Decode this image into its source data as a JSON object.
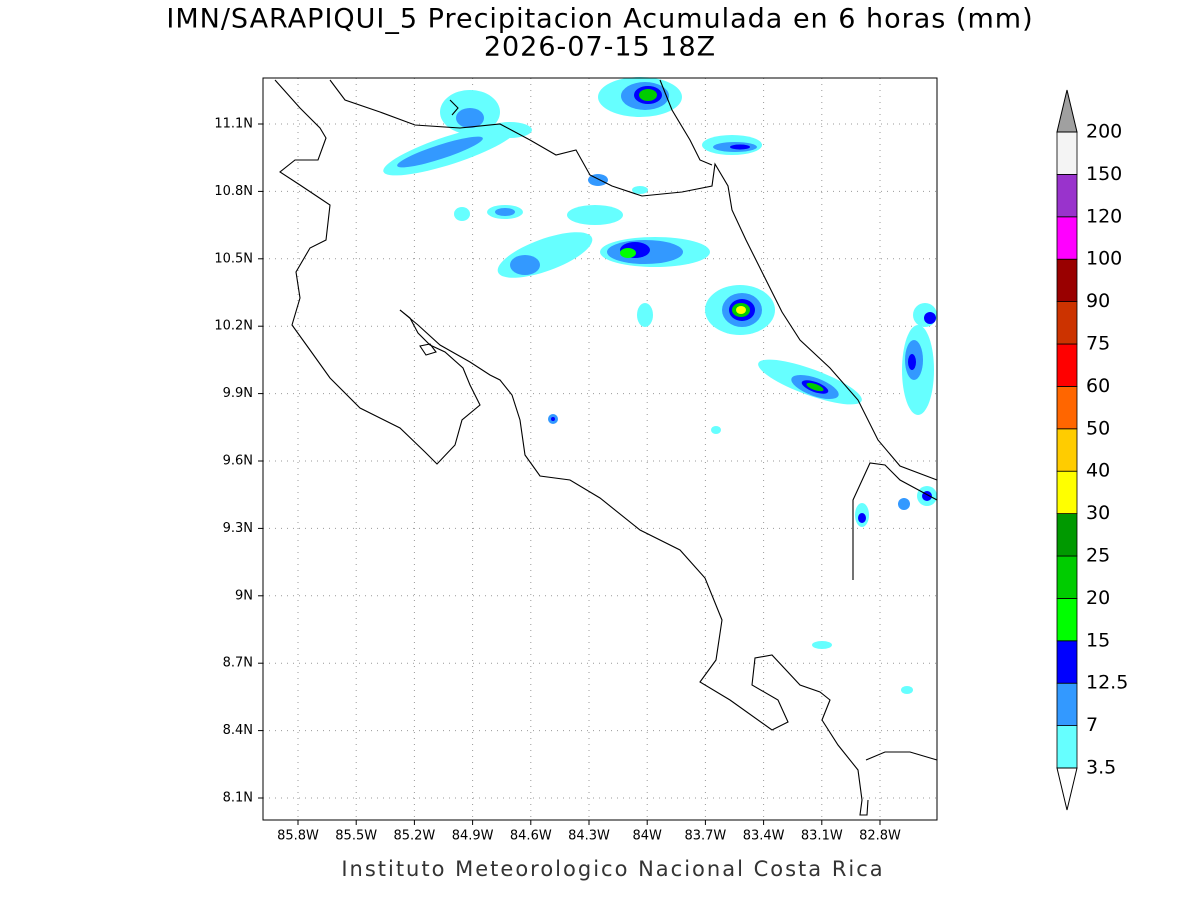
{
  "title": "IMN/SARAPIQUI_5 Precipitacion Acumulada en 6 horas (mm)",
  "subtitle": "2026-07-15 18Z",
  "credit": "Instituto Meteorologico Nacional Costa Rica",
  "map": {
    "lon_labels": [
      "85.8W",
      "85.5W",
      "85.2W",
      "84.9W",
      "84.6W",
      "84.3W",
      "84W",
      "83.7W",
      "83.4W",
      "83.1W",
      "82.8W"
    ],
    "lat_labels": [
      "11.1N",
      "10.8N",
      "10.5N",
      "10.2N",
      "9.9N",
      "9.6N",
      "9.3N",
      "9N",
      "8.7N",
      "8.4N",
      "8.1N"
    ]
  },
  "colorbar": {
    "labels": [
      "3.5",
      "7",
      "12.5",
      "15",
      "20",
      "25",
      "30",
      "40",
      "50",
      "60",
      "75",
      "90",
      "100",
      "120",
      "150",
      "200"
    ],
    "colors": [
      "#66ffff",
      "#3399ff",
      "#0000ff",
      "#00ff00",
      "#00cc00",
      "#009900",
      "#ffff00",
      "#ffcc00",
      "#ff6600",
      "#ff0000",
      "#cc3300",
      "#990000",
      "#ff00ff",
      "#9933cc",
      "#f4f4f4"
    ],
    "under_color": "#ffffff",
    "over_color": "#a0a0a0"
  }
}
